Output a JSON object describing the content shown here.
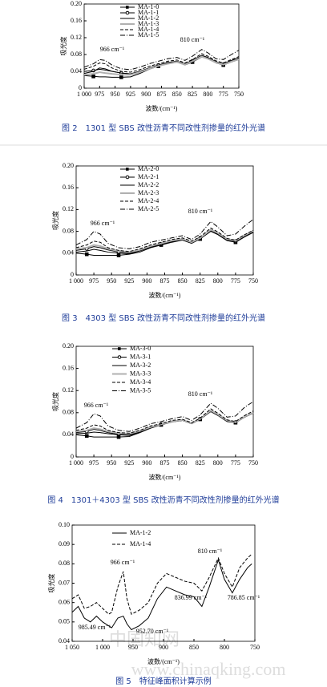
{
  "chart_data": [
    {
      "type": "line",
      "caption": "图 2　1301 型 SBS 改性沥青不同改性剂掺量的红外光谱",
      "y_label": "吸光度",
      "x_label": "波数/(cm⁻¹)",
      "xlim": [
        1000,
        750
      ],
      "xticks": [
        {
          "value": 1000,
          "label": "1 000"
        },
        975,
        950,
        925,
        900,
        875,
        850,
        825,
        800,
        775,
        750
      ],
      "ylim": [
        0,
        0.2
      ],
      "yticks": [
        0,
        0.04,
        0.08,
        0.12,
        0.16,
        {
          "value": 0.2,
          "label": "0.20"
        }
      ],
      "annotations": [
        "966 cm⁻¹",
        "810 cm⁻¹"
      ],
      "x": [
        1000,
        985,
        975,
        966,
        955,
        940,
        925,
        910,
        895,
        880,
        865,
        850,
        837,
        825,
        810,
        800,
        787,
        775,
        762,
        750
      ],
      "series": [
        {
          "name": "MA-1-0",
          "color": "#000000",
          "style": "solid",
          "marker": "square",
          "values": [
            0.03,
            0.028,
            0.027,
            0.027,
            0.026,
            0.026,
            0.027,
            0.035,
            0.045,
            0.052,
            0.058,
            0.062,
            0.055,
            0.062,
            0.074,
            0.07,
            0.06,
            0.055,
            0.062,
            0.068
          ]
        },
        {
          "name": "MA-1-1",
          "color": "#000000",
          "style": "solid",
          "marker": "circle",
          "values": [
            0.04,
            0.042,
            0.045,
            0.043,
            0.04,
            0.036,
            0.034,
            0.04,
            0.048,
            0.055,
            0.06,
            0.063,
            0.057,
            0.065,
            0.077,
            0.072,
            0.062,
            0.057,
            0.064,
            0.07
          ]
        },
        {
          "name": "MA-1-2",
          "color": "#000000",
          "style": "solid",
          "marker": "none",
          "values": [
            0.035,
            0.04,
            0.048,
            0.046,
            0.04,
            0.036,
            0.034,
            0.04,
            0.048,
            0.055,
            0.061,
            0.064,
            0.058,
            0.066,
            0.078,
            0.073,
            0.063,
            0.058,
            0.066,
            0.072
          ]
        },
        {
          "name": "MA-1-3",
          "color": "#b0b0b0",
          "style": "solid",
          "marker": "none",
          "values": [
            0.032,
            0.034,
            0.038,
            0.036,
            0.034,
            0.032,
            0.032,
            0.038,
            0.046,
            0.053,
            0.058,
            0.062,
            0.056,
            0.064,
            0.075,
            0.07,
            0.061,
            0.056,
            0.063,
            0.069
          ]
        },
        {
          "name": "MA-1-4",
          "color": "#000000",
          "style": "dashed",
          "marker": "none",
          "values": [
            0.045,
            0.052,
            0.06,
            0.058,
            0.048,
            0.04,
            0.038,
            0.044,
            0.052,
            0.058,
            0.064,
            0.067,
            0.06,
            0.068,
            0.082,
            0.076,
            0.065,
            0.06,
            0.068,
            0.075
          ]
        },
        {
          "name": "MA-1-5",
          "color": "#000000",
          "style": "dashdot",
          "marker": "none",
          "values": [
            0.05,
            0.058,
            0.068,
            0.066,
            0.055,
            0.046,
            0.044,
            0.05,
            0.058,
            0.064,
            0.07,
            0.073,
            0.066,
            0.076,
            0.092,
            0.084,
            0.07,
            0.068,
            0.08,
            0.09
          ]
        }
      ]
    },
    {
      "type": "line",
      "caption": "图 3　4303 型 SBS 改性沥青不同改性剂掺量的红外光谱",
      "y_label": "吸光度",
      "x_label": "波数/(cm⁻¹)",
      "xlim": [
        1000,
        750
      ],
      "xticks": [
        {
          "value": 1000,
          "label": "1 000"
        },
        975,
        950,
        925,
        900,
        875,
        850,
        825,
        800,
        775,
        750
      ],
      "ylim": [
        0,
        0.2
      ],
      "yticks": [
        0,
        0.04,
        0.08,
        0.12,
        0.16,
        {
          "value": 0.2,
          "label": "0.20"
        }
      ],
      "annotations": [
        "966 cm⁻¹",
        "810 cm⁻¹"
      ],
      "x": [
        1000,
        985,
        975,
        966,
        955,
        940,
        925,
        910,
        895,
        880,
        865,
        850,
        837,
        825,
        810,
        800,
        787,
        775,
        762,
        750
      ],
      "series": [
        {
          "name": "MA-2-0",
          "color": "#000000",
          "style": "solid",
          "marker": "square",
          "values": [
            0.04,
            0.038,
            0.036,
            0.036,
            0.036,
            0.036,
            0.038,
            0.042,
            0.05,
            0.055,
            0.06,
            0.064,
            0.058,
            0.066,
            0.08,
            0.074,
            0.063,
            0.06,
            0.07,
            0.078
          ]
        },
        {
          "name": "MA-2-1",
          "color": "#000000",
          "style": "solid",
          "marker": "circle",
          "values": [
            0.045,
            0.048,
            0.052,
            0.05,
            0.046,
            0.042,
            0.04,
            0.045,
            0.052,
            0.057,
            0.062,
            0.066,
            0.06,
            0.068,
            0.082,
            0.076,
            0.065,
            0.062,
            0.072,
            0.08
          ]
        },
        {
          "name": "MA-2-2",
          "color": "#000000",
          "style": "solid",
          "marker": "none",
          "values": [
            0.042,
            0.044,
            0.047,
            0.045,
            0.042,
            0.04,
            0.039,
            0.044,
            0.051,
            0.056,
            0.061,
            0.065,
            0.059,
            0.067,
            0.081,
            0.075,
            0.064,
            0.061,
            0.071,
            0.079
          ]
        },
        {
          "name": "MA-2-3",
          "color": "#b0b0b0",
          "style": "solid",
          "marker": "none",
          "values": [
            0.048,
            0.05,
            0.055,
            0.053,
            0.048,
            0.044,
            0.042,
            0.046,
            0.053,
            0.058,
            0.063,
            0.066,
            0.06,
            0.068,
            0.083,
            0.077,
            0.066,
            0.063,
            0.073,
            0.081
          ]
        },
        {
          "name": "MA-2-4",
          "color": "#000000",
          "style": "dashed",
          "marker": "none",
          "values": [
            0.05,
            0.055,
            0.062,
            0.06,
            0.05,
            0.045,
            0.043,
            0.048,
            0.055,
            0.06,
            0.065,
            0.068,
            0.062,
            0.07,
            0.086,
            0.079,
            0.067,
            0.064,
            0.074,
            0.082
          ]
        },
        {
          "name": "MA-2-5",
          "color": "#000000",
          "style": "dashdot",
          "marker": "none",
          "values": [
            0.055,
            0.065,
            0.08,
            0.075,
            0.058,
            0.05,
            0.048,
            0.052,
            0.06,
            0.064,
            0.068,
            0.072,
            0.065,
            0.075,
            0.098,
            0.088,
            0.072,
            0.075,
            0.09,
            0.102
          ]
        }
      ]
    },
    {
      "type": "line",
      "caption": "图 4　1301＋4303 型 SBS 改性沥青不同改性剂掺量的红外光谱",
      "y_label": "吸光度",
      "x_label": "波数/(cm⁻¹)",
      "xlim": [
        1000,
        750
      ],
      "xticks": [
        {
          "value": 1000,
          "label": "1 000"
        },
        975,
        950,
        925,
        900,
        875,
        850,
        825,
        800,
        775,
        750
      ],
      "ylim": [
        0,
        0.2
      ],
      "yticks": [
        0,
        0.04,
        0.08,
        0.12,
        0.16,
        {
          "value": 0.2,
          "label": "0.20"
        }
      ],
      "annotations": [
        "966 cm⁻¹",
        "810 cm⁻¹"
      ],
      "x": [
        1000,
        985,
        975,
        966,
        955,
        940,
        925,
        910,
        895,
        880,
        865,
        850,
        837,
        825,
        810,
        800,
        787,
        775,
        762,
        750
      ],
      "series": [
        {
          "name": "MA-3-0",
          "color": "#000000",
          "style": "solid",
          "marker": "square",
          "values": [
            0.04,
            0.038,
            0.036,
            0.036,
            0.036,
            0.036,
            0.037,
            0.044,
            0.052,
            0.058,
            0.064,
            0.066,
            0.06,
            0.068,
            0.082,
            0.075,
            0.064,
            0.062,
            0.072,
            0.08
          ]
        },
        {
          "name": "MA-3-1",
          "color": "#000000",
          "style": "solid",
          "marker": "circle",
          "values": [
            0.044,
            0.046,
            0.05,
            0.048,
            0.044,
            0.041,
            0.04,
            0.046,
            0.054,
            0.059,
            0.064,
            0.067,
            0.061,
            0.069,
            0.084,
            0.077,
            0.066,
            0.063,
            0.073,
            0.08
          ]
        },
        {
          "name": "MA-3-2",
          "color": "#000000",
          "style": "solid",
          "marker": "none",
          "values": [
            0.042,
            0.043,
            0.045,
            0.044,
            0.042,
            0.04,
            0.039,
            0.045,
            0.053,
            0.058,
            0.063,
            0.066,
            0.06,
            0.068,
            0.083,
            0.076,
            0.065,
            0.062,
            0.072,
            0.079
          ]
        },
        {
          "name": "MA-3-3",
          "color": "#b0b0b0",
          "style": "solid",
          "marker": "none",
          "values": [
            0.046,
            0.048,
            0.052,
            0.05,
            0.046,
            0.043,
            0.042,
            0.047,
            0.054,
            0.059,
            0.064,
            0.067,
            0.061,
            0.069,
            0.084,
            0.077,
            0.066,
            0.063,
            0.073,
            0.08
          ]
        },
        {
          "name": "MA-3-4",
          "color": "#000000",
          "style": "dashed",
          "marker": "none",
          "values": [
            0.048,
            0.052,
            0.058,
            0.056,
            0.048,
            0.044,
            0.043,
            0.048,
            0.056,
            0.06,
            0.066,
            0.068,
            0.062,
            0.07,
            0.087,
            0.079,
            0.067,
            0.064,
            0.075,
            0.083
          ]
        },
        {
          "name": "MA-3-5",
          "color": "#000000",
          "style": "dashdot",
          "marker": "none",
          "values": [
            0.052,
            0.062,
            0.078,
            0.074,
            0.056,
            0.048,
            0.046,
            0.052,
            0.06,
            0.064,
            0.069,
            0.073,
            0.066,
            0.076,
            0.097,
            0.088,
            0.072,
            0.074,
            0.09,
            0.1
          ]
        }
      ]
    },
    {
      "type": "line",
      "caption": "图 5　特征峰面积计算示例",
      "y_label": "吸光度",
      "x_label": "波数/(cm⁻¹)",
      "xlim": [
        1050,
        750
      ],
      "xticks": [
        {
          "value": 1050,
          "label": "1 050"
        },
        {
          "value": 1000,
          "label": "1 000"
        },
        950,
        900,
        850,
        800,
        750
      ],
      "ylim": [
        0.04,
        0.1
      ],
      "yticks": [
        0.04,
        0.05,
        0.06,
        0.07,
        0.08,
        0.09,
        {
          "value": 0.1,
          "label": "0.10"
        }
      ],
      "annotations": [
        "966 cm⁻¹",
        "810 cm⁻¹",
        "985.49 cm⁻¹",
        "952.70 cm⁻¹",
        "836.99 cm⁻¹",
        "786.85 cm⁻¹"
      ],
      "x": [
        1050,
        1040,
        1030,
        1020,
        1010,
        1000,
        990,
        985,
        975,
        966,
        960,
        952.7,
        940,
        925,
        910,
        895,
        880,
        865,
        850,
        837,
        825,
        810,
        800,
        787,
        775,
        762,
        755
      ],
      "series": [
        {
          "name": "MA-1-2",
          "color": "#000000",
          "style": "solid",
          "marker": "none",
          "values": [
            0.055,
            0.058,
            0.052,
            0.05,
            0.053,
            0.05,
            0.048,
            0.047,
            0.052,
            0.053,
            0.049,
            0.046,
            0.048,
            0.052,
            0.062,
            0.068,
            0.066,
            0.064,
            0.063,
            0.058,
            0.068,
            0.082,
            0.072,
            0.065,
            0.072,
            0.078,
            0.08
          ]
        },
        {
          "name": "MA-1-4",
          "color": "#000000",
          "style": "dashed",
          "marker": "none",
          "values": [
            0.062,
            0.064,
            0.057,
            0.058,
            0.06,
            0.057,
            0.054,
            0.055,
            0.068,
            0.076,
            0.062,
            0.054,
            0.056,
            0.06,
            0.07,
            0.075,
            0.073,
            0.071,
            0.07,
            0.066,
            0.073,
            0.083,
            0.075,
            0.068,
            0.078,
            0.083,
            0.085
          ]
        }
      ]
    }
  ],
  "watermark": [
    "中国知网",
    "www.chinaqking.com"
  ]
}
